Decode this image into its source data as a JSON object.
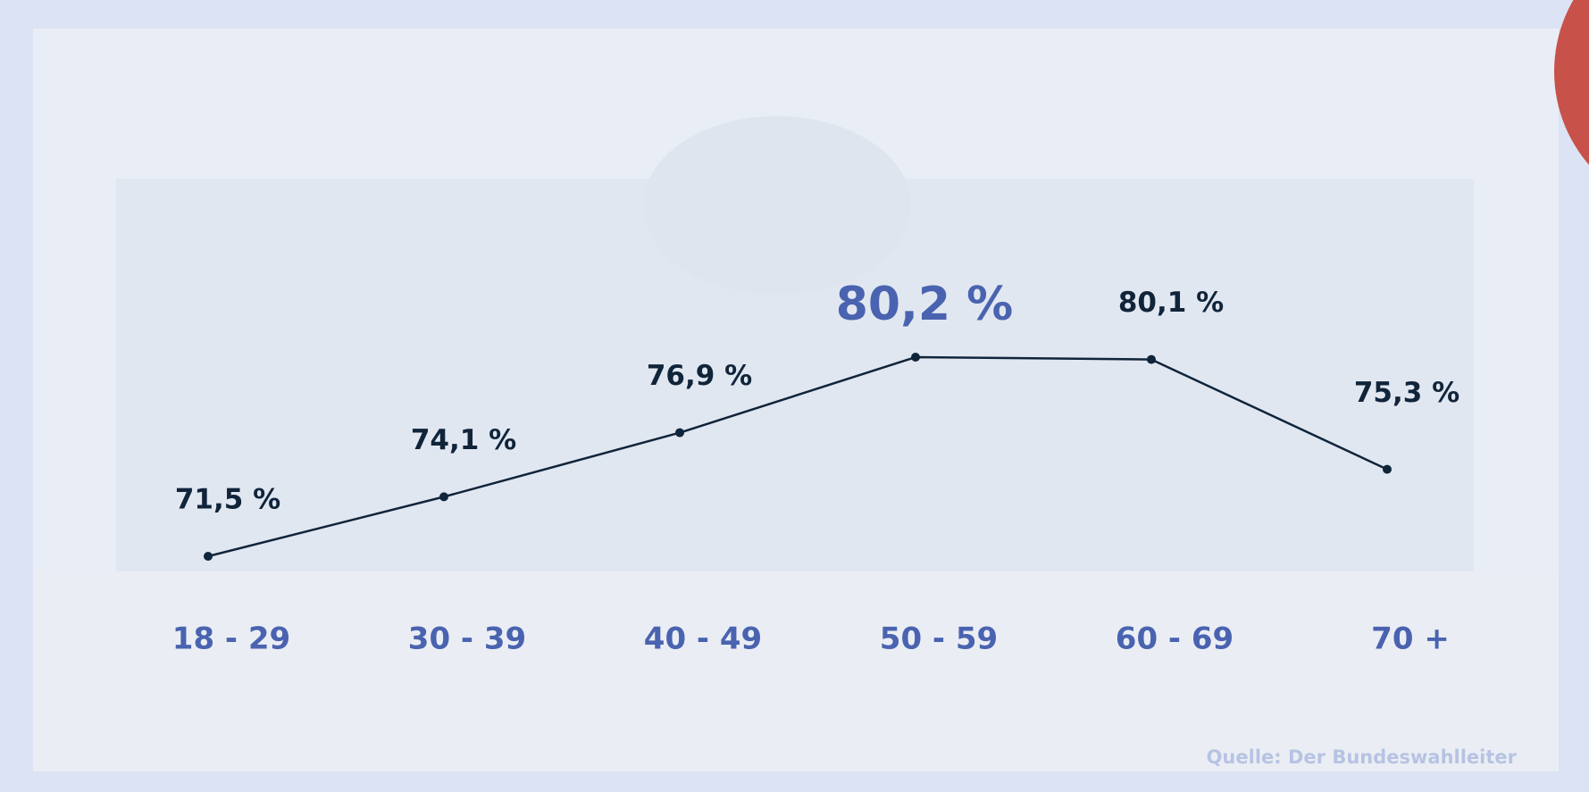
{
  "chart_data": {
    "type": "line",
    "categories": [
      "18 - 29",
      "30 - 39",
      "40 - 49",
      "50 - 59",
      "60 - 69",
      "70 +"
    ],
    "values": [
      71.5,
      74.1,
      76.9,
      80.2,
      80.1,
      75.3
    ],
    "value_labels": [
      "71,5 %",
      "74,1 %",
      "76,9 %",
      "80,2 %",
      "80,1 %",
      "75,3 %"
    ],
    "color": "#10243a",
    "source": "Quelle: Der Bundeswahlleiter"
  }
}
